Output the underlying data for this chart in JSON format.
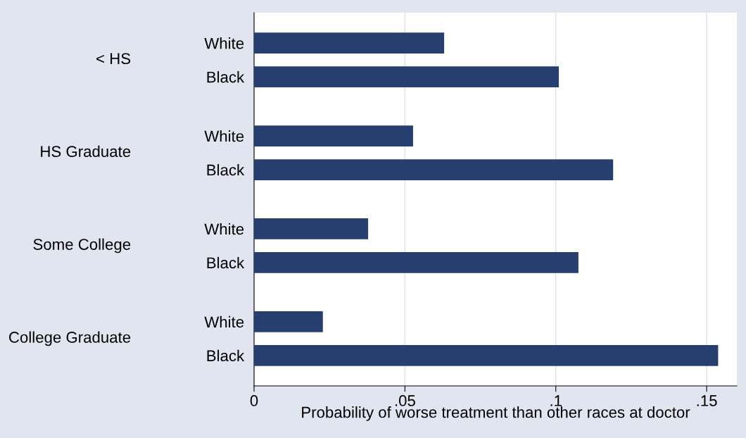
{
  "chart_data": {
    "type": "bar",
    "orientation": "horizontal",
    "categories": [
      "White",
      "Black",
      "White",
      "Black",
      "White",
      "Black",
      "White",
      "Black"
    ],
    "values": [
      0.063,
      0.101,
      0.0527,
      0.119,
      0.0378,
      0.1075,
      0.0228,
      0.1538
    ],
    "color": "#273f6e",
    "annotations": [
      "< HS",
      "HS Graduate",
      "Some College",
      "College Graduate"
    ],
    "xlabel": "Probability of worse treatment than other races at doctor",
    "xlim": [
      0,
      0.16
    ],
    "xticks": [
      {
        "value": 0,
        "label": "0"
      },
      {
        "value": 0.05,
        "label": ".05"
      },
      {
        "value": 0.1,
        "label": ".1"
      },
      {
        "value": 0.15,
        "label": ".15"
      }
    ],
    "grid": "x"
  }
}
